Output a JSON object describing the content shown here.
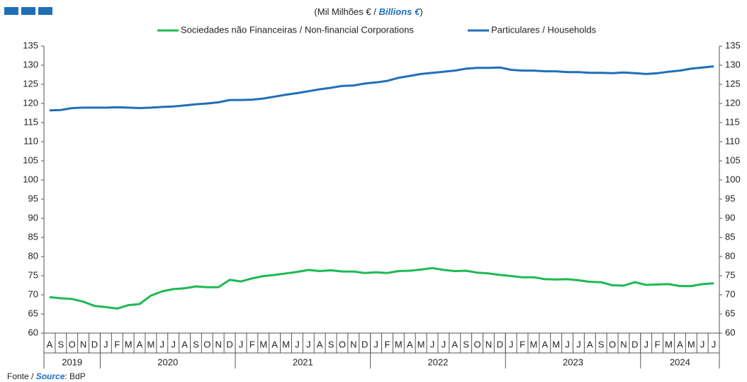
{
  "chart_data": {
    "type": "line",
    "title_parts": [
      "(Mil Milhões € / ",
      "Billions €",
      ")"
    ],
    "source_parts": [
      "Fonte / ",
      "Source",
      ": BdP"
    ],
    "categories": [
      "A",
      "S",
      "O",
      "N",
      "D",
      "J",
      "F",
      "M",
      "A",
      "M",
      "J",
      "J",
      "A",
      "S",
      "O",
      "N",
      "D",
      "J",
      "F",
      "M",
      "A",
      "M",
      "J",
      "J",
      "A",
      "S",
      "O",
      "N",
      "D",
      "J",
      "F",
      "M",
      "A",
      "M",
      "J",
      "J",
      "A",
      "S",
      "O",
      "N",
      "D",
      "J",
      "F",
      "M",
      "A",
      "M",
      "J",
      "J",
      "A",
      "S",
      "O",
      "N",
      "D",
      "J",
      "F",
      "M",
      "A",
      "M",
      "J",
      "J"
    ],
    "years": [
      "2019",
      "2020",
      "2021",
      "2022",
      "2023",
      "2024"
    ],
    "series": [
      {
        "name": "Sociedades não Financeiras / Non-financial Corporations",
        "color": "#1db954",
        "values": [
          69.4,
          69.1,
          68.9,
          68.2,
          67.1,
          66.8,
          66.4,
          67.3,
          67.6,
          69.8,
          70.9,
          71.5,
          71.7,
          72.2,
          72.0,
          72.0,
          73.9,
          73.5,
          74.3,
          74.9,
          75.2,
          75.6,
          76.0,
          76.5,
          76.2,
          76.4,
          76.1,
          76.1,
          75.7,
          75.9,
          75.7,
          76.2,
          76.3,
          76.6,
          77.0,
          76.5,
          76.2,
          76.3,
          75.8,
          75.6,
          75.2,
          74.9,
          74.6,
          74.6,
          74.1,
          74.0,
          74.1,
          73.8,
          73.4,
          73.3,
          72.5,
          72.4,
          73.3,
          72.6,
          72.7,
          72.8,
          72.3,
          72.3,
          72.8,
          73.0
        ]
      },
      {
        "name": "Particulares / Households",
        "color": "#1f6fb9",
        "values": [
          118.2,
          118.3,
          118.8,
          118.9,
          118.9,
          118.9,
          119.0,
          118.9,
          118.8,
          118.9,
          119.1,
          119.2,
          119.5,
          119.8,
          120.0,
          120.3,
          120.9,
          120.9,
          121.0,
          121.3,
          121.8,
          122.3,
          122.7,
          123.2,
          123.7,
          124.1,
          124.6,
          124.7,
          125.2,
          125.5,
          125.9,
          126.7,
          127.2,
          127.7,
          128.0,
          128.3,
          128.6,
          129.1,
          129.3,
          129.3,
          129.4,
          128.8,
          128.6,
          128.6,
          128.4,
          128.4,
          128.2,
          128.2,
          128.0,
          128.0,
          127.9,
          128.1,
          127.9,
          127.7,
          127.9,
          128.3,
          128.6,
          129.1,
          129.4,
          129.7
        ]
      }
    ],
    "ylim": [
      60,
      135
    ],
    "yticks": [
      60,
      65,
      70,
      75,
      80,
      85,
      90,
      95,
      100,
      105,
      110,
      115,
      120,
      125,
      130,
      135
    ],
    "grid": false
  }
}
